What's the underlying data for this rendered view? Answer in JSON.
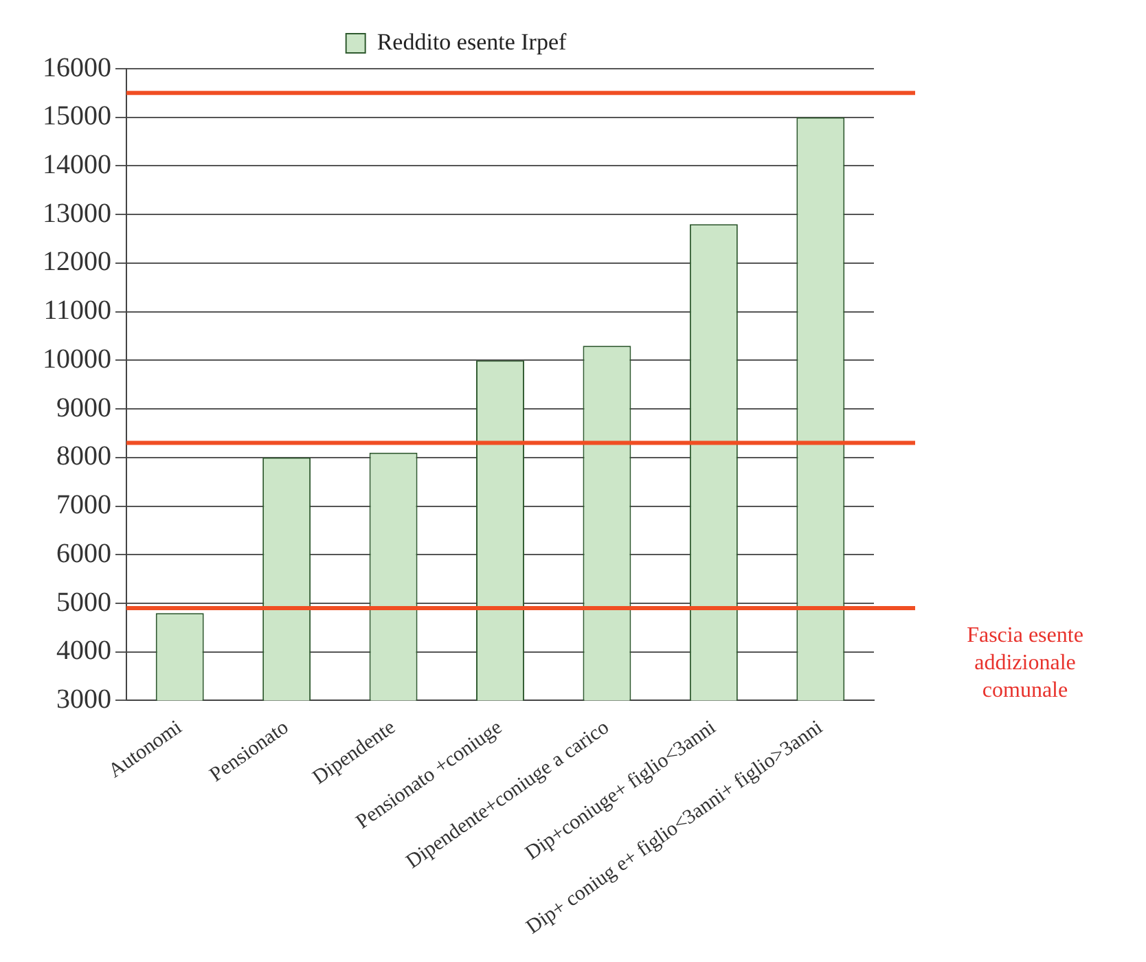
{
  "chart_data": {
    "type": "bar",
    "categories": [
      "Autonomi",
      "Pensionato",
      "Dipendente",
      "Pensionato +coniuge",
      "Dipendente+coniuge a carico",
      "Dip+coniuge+ figlio<3anni",
      "Dip+ coniug e+ figlio<3anni+ figlio>3anni"
    ],
    "series": [
      {
        "name": "Reddito esente Irpef",
        "color": "#cce6c8",
        "values": [
          4800,
          8000,
          8100,
          10000,
          10300,
          12800,
          15000
        ]
      }
    ],
    "ylim": [
      3000,
      16000
    ],
    "yticks": [
      3000,
      4000,
      5000,
      6000,
      7000,
      8000,
      9000,
      10000,
      11000,
      12000,
      13000,
      14000,
      15000,
      16000
    ],
    "grid": "y",
    "legend": "top",
    "ref_lines": [
      {
        "axis": "y",
        "value": 15500,
        "color": "#f04e23"
      },
      {
        "axis": "y",
        "value": 8300,
        "color": "#f04e23"
      },
      {
        "axis": "y",
        "value": 4900,
        "color": "#f04e23"
      }
    ],
    "annotations": [
      "Fascia esente addizionale comunale"
    ]
  }
}
